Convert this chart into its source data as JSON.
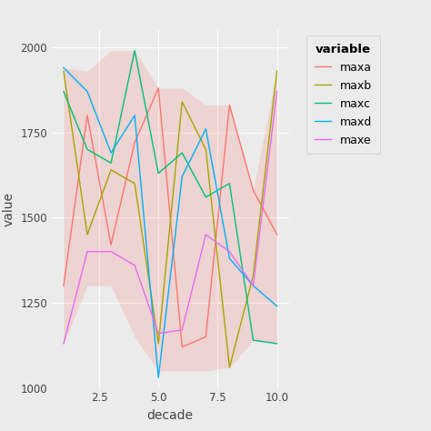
{
  "decades": [
    1,
    2,
    3,
    4,
    5,
    6,
    7,
    8,
    9,
    10
  ],
  "maxa": [
    1300,
    1800,
    1420,
    1720,
    1880,
    1120,
    1150,
    1830,
    1580,
    1450
  ],
  "maxb": [
    1930,
    1450,
    1640,
    1600,
    1130,
    1840,
    1700,
    1060,
    1330,
    1930
  ],
  "maxc": [
    1870,
    1700,
    1660,
    1990,
    1630,
    1690,
    1560,
    1600,
    1140,
    1130
  ],
  "maxd": [
    1940,
    1870,
    1690,
    1800,
    1030,
    1620,
    1760,
    1380,
    1300,
    1240
  ],
  "maxe": [
    1130,
    1400,
    1400,
    1360,
    1160,
    1170,
    1450,
    1400,
    1300,
    1870
  ],
  "ribbon_ymin": [
    1130,
    1300,
    1300,
    1150,
    1050,
    1050,
    1050,
    1060,
    1140,
    1130
  ],
  "ribbon_ymax": [
    1940,
    1930,
    1990,
    1990,
    1880,
    1880,
    1830,
    1830,
    1580,
    1930
  ],
  "colors": {
    "maxa": "#F8766D",
    "maxb": "#A3A500",
    "maxc": "#00BF7D",
    "maxd": "#00B0F6",
    "maxe": "#E76BF3"
  },
  "ribbon_color": "#F8766D",
  "ribbon_alpha": 0.2,
  "bg_color": "#EBEBEB",
  "panel_bg": "#EBEBEB",
  "grid_color": "#FFFFFF",
  "legend_title": "variable",
  "xlabel": "decade",
  "ylabel": "value",
  "ylim": [
    1000,
    2050
  ],
  "xlim": [
    0.5,
    10.5
  ],
  "xticks": [
    2.5,
    5.0,
    7.5,
    10.0
  ],
  "yticks": [
    1000,
    1250,
    1500,
    1750,
    2000
  ],
  "line_width": 1.0
}
